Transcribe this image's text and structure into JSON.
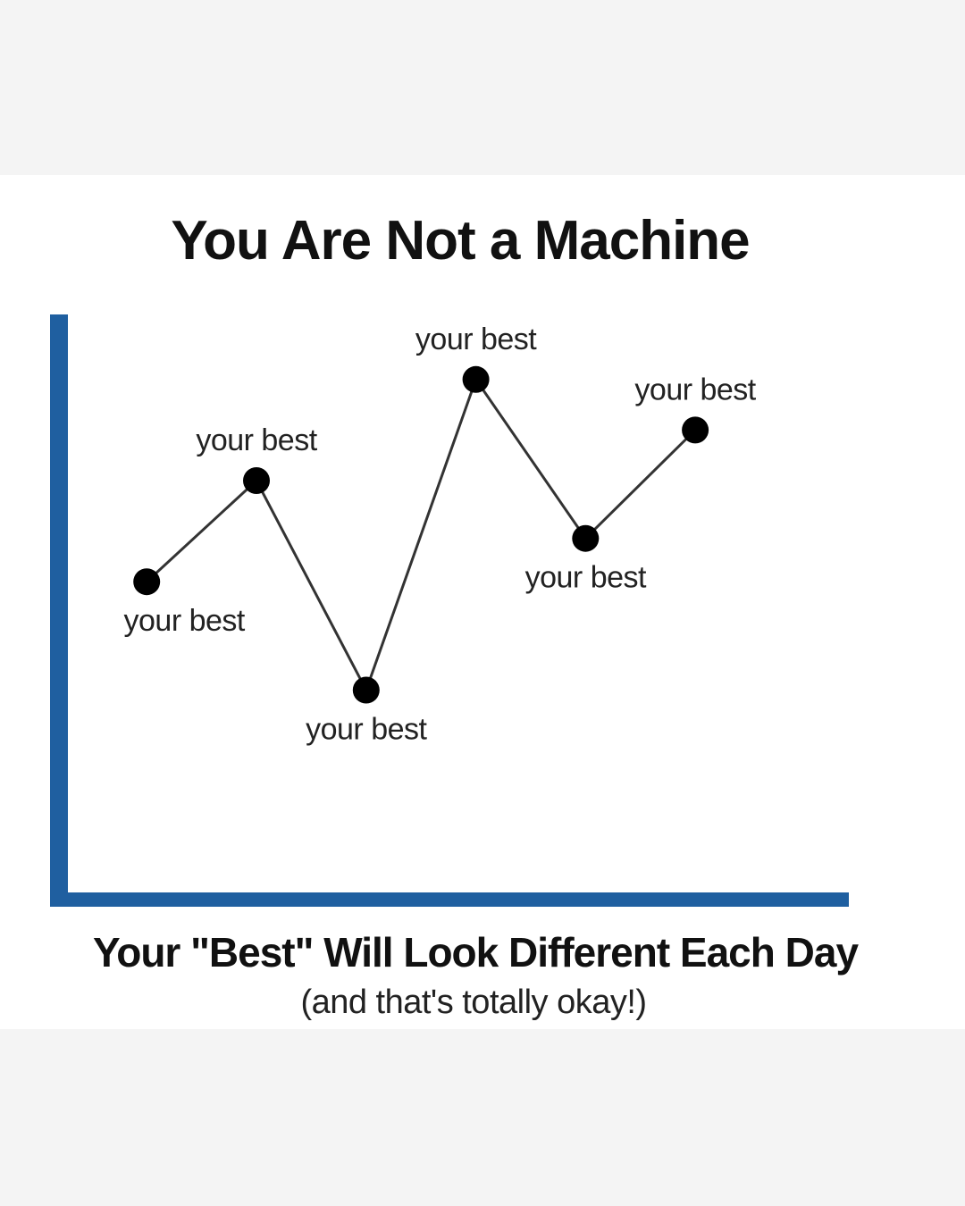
{
  "chart_data": {
    "type": "line",
    "title": "You Are Not a Machine",
    "subtitle": "Your \"Best\" Will Look Different Each Day",
    "caption": "(and that's totally okay!)",
    "xlabel": "",
    "ylabel": "",
    "x": [
      1,
      2,
      3,
      4,
      5,
      6
    ],
    "series": [
      {
        "values": [
          3.1,
          4.5,
          1.6,
          5.9,
          3.7,
          5.2
        ],
        "point_labels": [
          "your best",
          "your best",
          "your best",
          "your best",
          "your best",
          "your best"
        ]
      }
    ],
    "xlim": [
      0.2,
      7.4
    ],
    "ylim": [
      -1.3,
      6.8
    ],
    "grid": false,
    "legend": "none",
    "axis_color": "#1f5fa0",
    "line_color": "#333333",
    "marker_color": "#000000"
  }
}
